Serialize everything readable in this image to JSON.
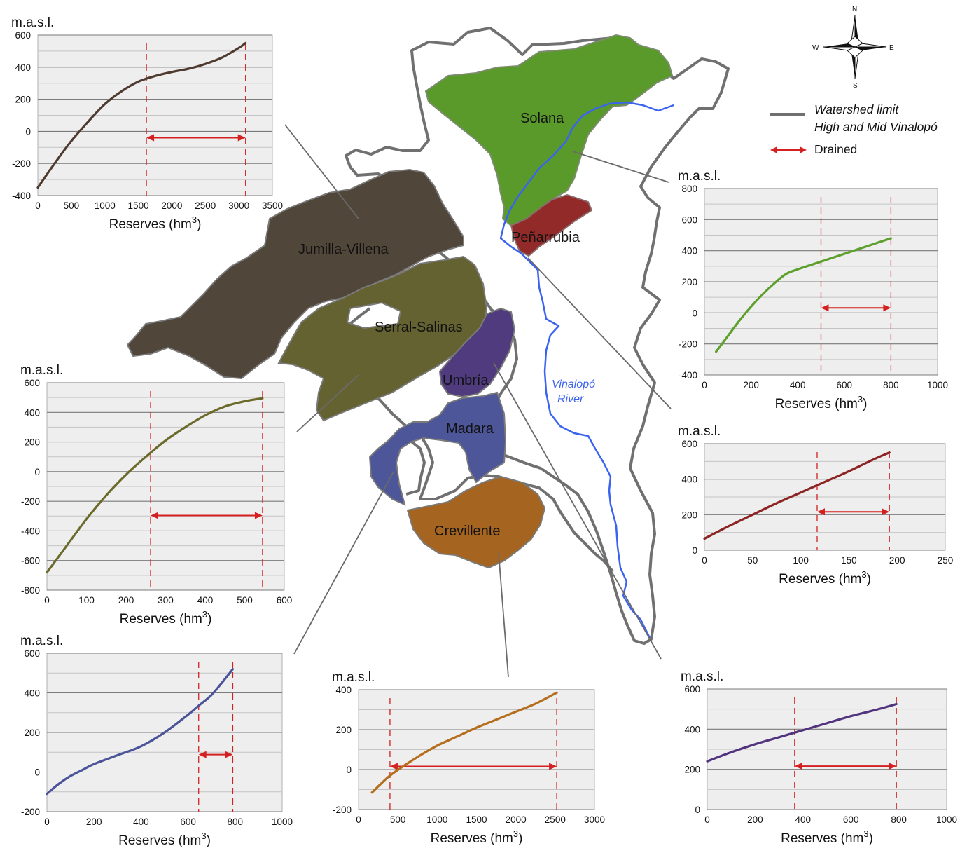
{
  "map": {
    "regions": [
      {
        "id": "solana",
        "label": "Solana",
        "color": "#5a9a2b"
      },
      {
        "id": "penarrubia",
        "label": "Peñarrubia",
        "color": "#922a2a"
      },
      {
        "id": "jumilla",
        "label": "Jumilla-Villena",
        "color": "#51463a"
      },
      {
        "id": "serral",
        "label": "Serral-Salinas",
        "color": "#646231"
      },
      {
        "id": "umbria",
        "label": "Umbría",
        "color": "#4f3b7e"
      },
      {
        "id": "madara",
        "label": "Madara",
        "color": "#4c5698"
      },
      {
        "id": "crevillente",
        "label": "Crevillente",
        "color": "#a5641f"
      }
    ],
    "river_label_1": "Vinalopó",
    "river_label_2": "River",
    "river_color": "#3a63f0",
    "watershed_color": "#707070"
  },
  "compass": {
    "n": "N",
    "s": "S",
    "e": "E",
    "w": "W"
  },
  "legend": {
    "watershed_line1": "Watershed limit",
    "watershed_line2": "High and Mid Vinalopó",
    "drained": "Drained",
    "drained_color": "#d42020"
  },
  "chart_data": [
    {
      "id": "jumilla",
      "type": "line",
      "ylabel": "m.a.s.l.",
      "xlabel": "Reserves (hm",
      "xlabel_sup": "3",
      "xlabel_end": ")",
      "xlim": [
        0,
        3500
      ],
      "ylim": [
        -400,
        600
      ],
      "xticks": [
        0,
        500,
        1000,
        1500,
        2000,
        2500,
        3000,
        3500
      ],
      "yticks": [
        -400,
        -200,
        0,
        200,
        400,
        600
      ],
      "color": "#4e3a2e",
      "x": [
        0,
        250,
        500,
        750,
        1000,
        1250,
        1500,
        1750,
        2000,
        2250,
        2500,
        2750,
        3000,
        3100
      ],
      "y": [
        -350,
        -200,
        -60,
        60,
        170,
        250,
        310,
        345,
        370,
        390,
        420,
        460,
        520,
        550
      ],
      "drained": {
        "from": 1620,
        "to": 3100
      }
    },
    {
      "id": "solana",
      "type": "line",
      "ylabel": "m.a.s.l.",
      "xlabel": "Reserves (hm",
      "xlabel_sup": "3",
      "xlabel_end": ")",
      "xlim": [
        0,
        1000
      ],
      "ylim": [
        -400,
        800
      ],
      "xticks": [
        0,
        200,
        400,
        600,
        800,
        1000
      ],
      "yticks": [
        -400,
        -200,
        0,
        200,
        400,
        600,
        800
      ],
      "color": "#5ea02e",
      "x": [
        50,
        100,
        150,
        200,
        250,
        300,
        350,
        400,
        500,
        600,
        700,
        800
      ],
      "y": [
        -250,
        -150,
        -50,
        40,
        120,
        190,
        250,
        280,
        330,
        380,
        430,
        480
      ],
      "drained": {
        "from": 500,
        "to": 800
      }
    },
    {
      "id": "penarrubia",
      "type": "line",
      "ylabel": "m.a.s.l.",
      "xlabel": "Reserves (hm",
      "xlabel_sup": "3",
      "xlabel_end": ")",
      "xlim": [
        0,
        250
      ],
      "ylim": [
        0,
        600
      ],
      "xticks": [
        0,
        50,
        100,
        150,
        200,
        250
      ],
      "yticks": [
        0,
        200,
        400,
        600
      ],
      "color": "#8c2424",
      "x": [
        0,
        25,
        50,
        75,
        100,
        125,
        150,
        175,
        192
      ],
      "y": [
        65,
        135,
        200,
        265,
        325,
        385,
        445,
        510,
        550
      ],
      "drained": {
        "from": 117,
        "to": 192
      }
    },
    {
      "id": "serral",
      "type": "line",
      "ylabel": "m.a.s.l.",
      "xlabel": "Reserves (hm",
      "xlabel_sup": "3",
      "xlabel_end": ")",
      "xlim": [
        0,
        600
      ],
      "ylim": [
        -800,
        600
      ],
      "xticks": [
        0,
        100,
        200,
        300,
        400,
        500,
        600
      ],
      "yticks": [
        -800,
        -600,
        -400,
        -200,
        0,
        200,
        400,
        600
      ],
      "color": "#6b6a2a",
      "x": [
        0,
        50,
        100,
        150,
        200,
        250,
        300,
        350,
        400,
        450,
        500,
        545
      ],
      "y": [
        -680,
        -500,
        -320,
        -160,
        -20,
        100,
        210,
        300,
        380,
        440,
        475,
        495
      ],
      "drained": {
        "from": 262,
        "to": 545
      }
    },
    {
      "id": "madara",
      "type": "line",
      "ylabel": "m.a.s.l.",
      "xlabel": "Reserves (hm",
      "xlabel_sup": "3",
      "xlabel_end": ")",
      "xlim": [
        0,
        1000
      ],
      "ylim": [
        -200,
        600
      ],
      "xticks": [
        0,
        200,
        400,
        600,
        800,
        1000
      ],
      "yticks": [
        -200,
        0,
        200,
        400,
        600
      ],
      "color": "#4b5499",
      "x": [
        0,
        50,
        100,
        150,
        200,
        300,
        400,
        500,
        600,
        650,
        700,
        750,
        790
      ],
      "y": [
        -110,
        -60,
        -20,
        10,
        40,
        85,
        130,
        200,
        290,
        340,
        390,
        460,
        520
      ],
      "drained": {
        "from": 645,
        "to": 790
      }
    },
    {
      "id": "crevillente",
      "type": "line",
      "ylabel": "m.a.s.l.",
      "xlabel": "Reserves (hm",
      "xlabel_sup": "3",
      "xlabel_end": ")",
      "xlim": [
        0,
        3000
      ],
      "ylim": [
        -200,
        400
      ],
      "xticks": [
        0,
        500,
        1000,
        1500,
        2000,
        2500,
        3000
      ],
      "yticks": [
        -200,
        0,
        200,
        400
      ],
      "color": "#b46e1e",
      "x": [
        170,
        300,
        400,
        600,
        800,
        1000,
        1250,
        1500,
        1750,
        2000,
        2250,
        2520
      ],
      "y": [
        -115,
        -65,
        -30,
        25,
        75,
        120,
        165,
        210,
        250,
        290,
        330,
        385
      ],
      "drained": {
        "from": 400,
        "to": 2520
      }
    },
    {
      "id": "umbria",
      "type": "line",
      "ylabel": "m.a.s.l.",
      "xlabel": "Reserves (hm",
      "xlabel_sup": "3",
      "xlabel_end": ")",
      "xlim": [
        0,
        1000
      ],
      "ylim": [
        0,
        600
      ],
      "xticks": [
        0,
        200,
        400,
        600,
        800,
        1000
      ],
      "yticks": [
        0,
        200,
        400,
        600
      ],
      "color": "#52347e",
      "x": [
        0,
        100,
        200,
        300,
        400,
        500,
        600,
        700,
        790
      ],
      "y": [
        240,
        285,
        325,
        360,
        395,
        430,
        465,
        495,
        525
      ],
      "drained": {
        "from": 365,
        "to": 790
      }
    }
  ]
}
